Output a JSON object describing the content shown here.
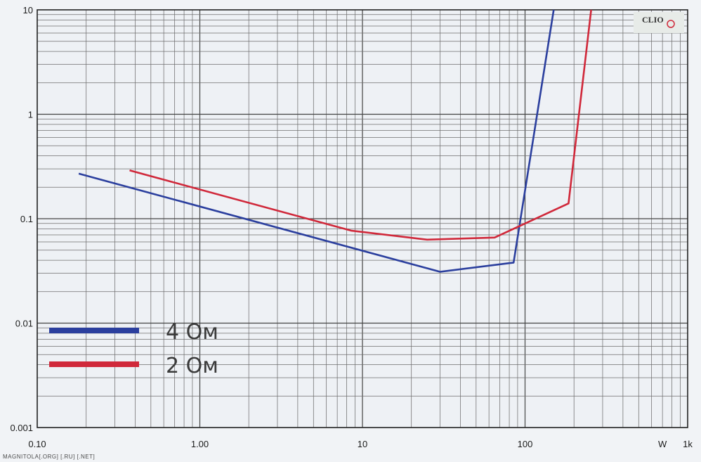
{
  "chart_data": {
    "type": "line",
    "x_scale": "log",
    "y_scale": "log",
    "xlim": [
      0.1,
      1000
    ],
    "ylim": [
      0.001,
      10
    ],
    "x_tick_labels": [
      {
        "value": 0.1,
        "label": "0.10"
      },
      {
        "value": 1,
        "label": "1.00"
      },
      {
        "value": 10,
        "label": "10"
      },
      {
        "value": 100,
        "label": "100"
      },
      {
        "value": 700,
        "label": "W"
      },
      {
        "value": 1000,
        "label": "1k"
      }
    ],
    "y_tick_labels": [
      {
        "value": 10,
        "label": "10"
      },
      {
        "value": 1,
        "label": "1"
      },
      {
        "value": 0.1,
        "label": "0.1"
      },
      {
        "value": 0.01,
        "label": "0.01"
      },
      {
        "value": 0.001,
        "label": "0.001"
      }
    ],
    "grid": true,
    "legend_position": "bottom-left",
    "series": [
      {
        "name": "4 Ом",
        "color": "#2b3f9e",
        "x": [
          0.18,
          30,
          85,
          150
        ],
        "y": [
          0.27,
          0.031,
          0.038,
          10
        ]
      },
      {
        "name": "2 Ом",
        "color": "#d0283a",
        "x": [
          0.37,
          8.5,
          25,
          65,
          185,
          255
        ],
        "y": [
          0.29,
          0.077,
          0.063,
          0.066,
          0.14,
          10
        ]
      }
    ]
  },
  "watermark": "MAGNITOLA[.ORG] [.RU] [.NET]",
  "logo": {
    "text": "CLIO"
  }
}
